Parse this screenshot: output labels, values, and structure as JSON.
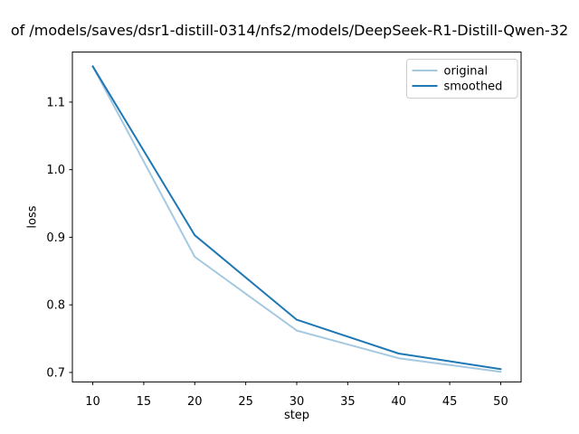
{
  "figure": {
    "kind": "matplotlib-loss-plot"
  },
  "chart_data": {
    "type": "line",
    "title": "of /models/saves/dsr1-distill-0314/nfs2/models/DeepSeek-R1-Distill-Qwen-32",
    "xlabel": "step",
    "ylabel": "loss",
    "x": [
      10,
      20,
      30,
      40,
      50
    ],
    "series": [
      {
        "name": "original",
        "color": "#a5c9e1",
        "values": [
          1.153,
          0.871,
          0.762,
          0.721,
          0.701
        ]
      },
      {
        "name": "smoothed",
        "color": "#1f77b4",
        "values": [
          1.153,
          0.903,
          0.778,
          0.728,
          0.705
        ]
      }
    ],
    "xticks": [
      10,
      15,
      20,
      25,
      30,
      35,
      40,
      45,
      50
    ],
    "yticks": [
      0.7,
      0.8,
      0.9,
      1.0,
      1.1
    ],
    "xlim": [
      8,
      52
    ],
    "ylim": [
      0.686,
      1.174
    ],
    "grid": false,
    "legend_position": "upper right",
    "legend_entries": [
      "original",
      "smoothed"
    ]
  },
  "colors": {
    "axis": "#000000",
    "legend_border": "#cccccc",
    "background": "#ffffff",
    "original_line": "#a5c9e1",
    "smoothed_line": "#1f77b4"
  }
}
